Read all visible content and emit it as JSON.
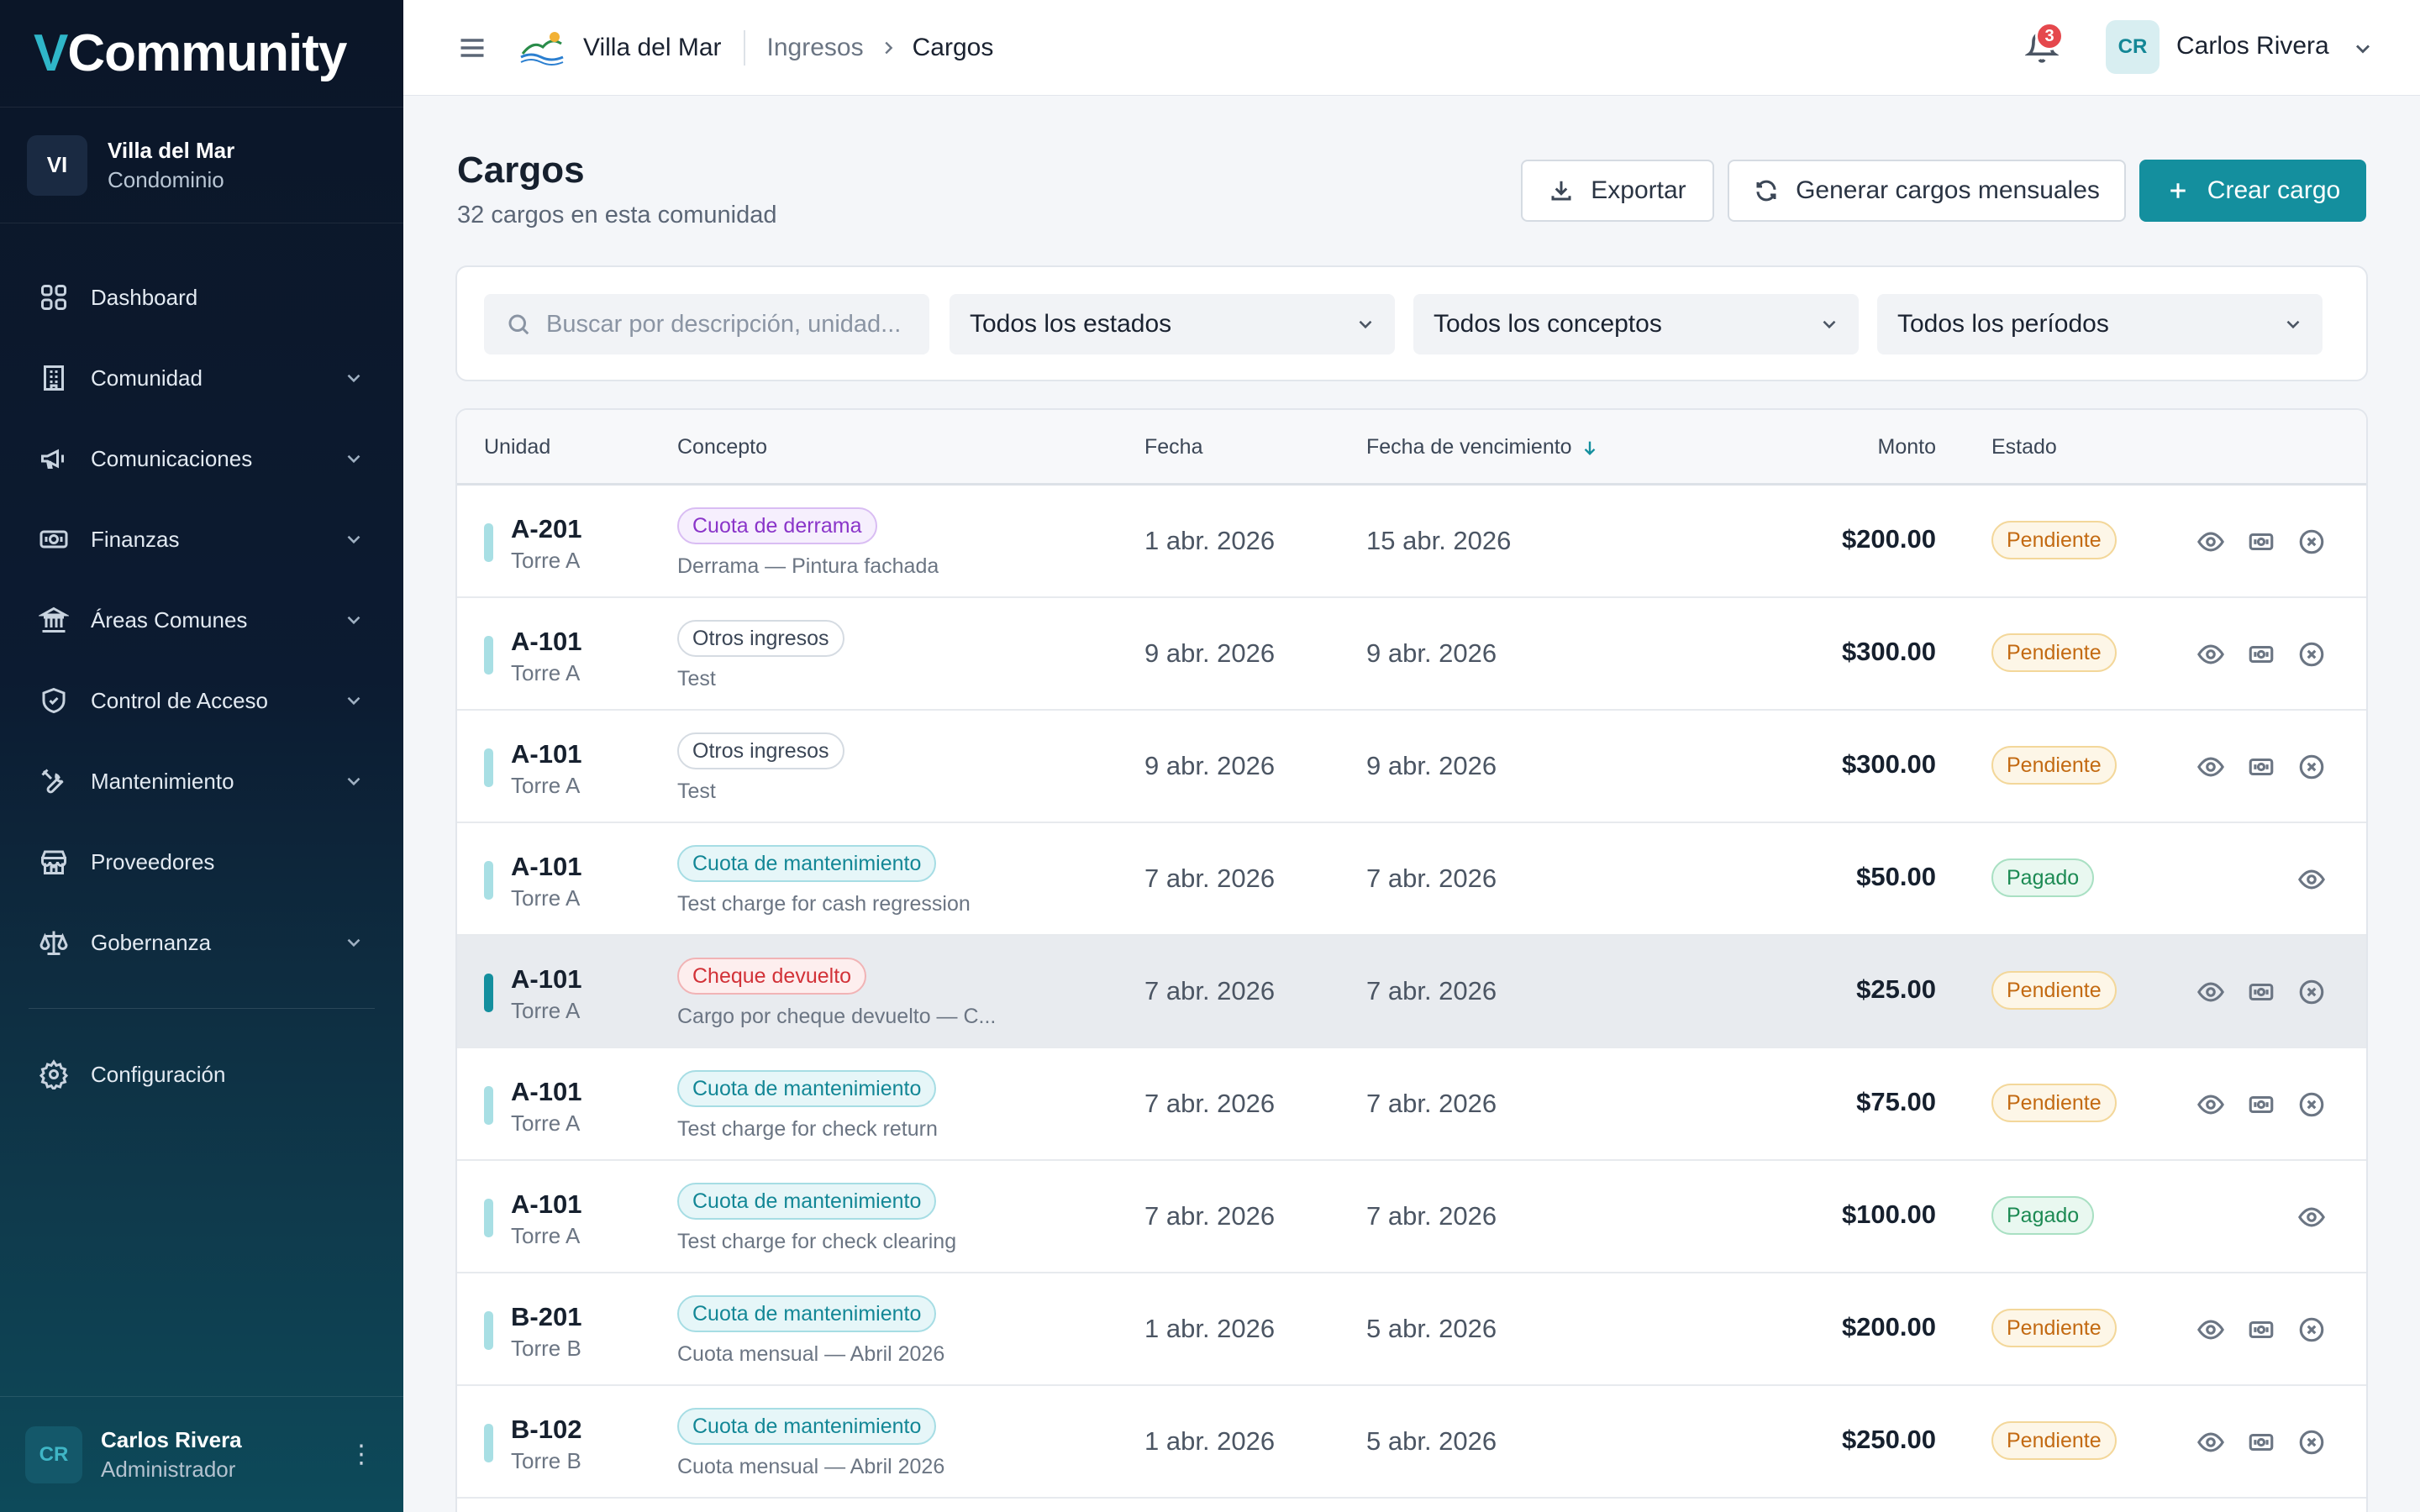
{
  "sidebar": {
    "logo_v": "V",
    "logo_rest": "Community",
    "community": {
      "initials": "VI",
      "name": "Villa del Mar",
      "type": "Condominio"
    },
    "items": [
      {
        "label": "Dashboard",
        "icon": "grid-icon",
        "expandable": false
      },
      {
        "label": "Comunidad",
        "icon": "building-icon",
        "expandable": true
      },
      {
        "label": "Comunicaciones",
        "icon": "megaphone-icon",
        "expandable": true
      },
      {
        "label": "Finanzas",
        "icon": "banknote-icon",
        "expandable": true
      },
      {
        "label": "Áreas Comunes",
        "icon": "landmark-icon",
        "expandable": true
      },
      {
        "label": "Control de Acceso",
        "icon": "shield-check-icon",
        "expandable": true
      },
      {
        "label": "Mantenimiento",
        "icon": "wrench-icon",
        "expandable": true
      },
      {
        "label": "Proveedores",
        "icon": "store-icon",
        "expandable": false
      },
      {
        "label": "Gobernanza",
        "icon": "scale-icon",
        "expandable": true
      }
    ],
    "settings_label": "Configuración",
    "user": {
      "initials": "CR",
      "name": "Carlos Rivera",
      "role": "Administrador",
      "menu": "⋮"
    }
  },
  "topbar": {
    "community": "Villa del Mar",
    "breadcrumb_parent": "Ingresos",
    "breadcrumb_current": "Cargos",
    "notifications": "3",
    "user_initials": "CR",
    "user_name": "Carlos Rivera"
  },
  "page": {
    "title": "Cargos",
    "subtitle": "32 cargos en esta comunidad",
    "export_label": "Exportar",
    "generate_label": "Generar cargos mensuales",
    "create_label": "Crear cargo"
  },
  "filters": {
    "search_placeholder": "Buscar por descripción, unidad...",
    "status": "Todos los estados",
    "concept": "Todos los conceptos",
    "period": "Todos los períodos"
  },
  "table": {
    "headers": {
      "unit": "Unidad",
      "concept": "Concepto",
      "date": "Fecha",
      "due": "Fecha de vencimiento",
      "amount": "Monto",
      "status": "Estado"
    },
    "rows": [
      {
        "unit": "A-201",
        "tower": "Torre A",
        "concept": "Cuota de derrama",
        "concept_color": "purple",
        "desc": "Derrama — Pintura fachada",
        "date": "1 abr. 2026",
        "due": "15 abr. 2026",
        "amount": "$200.00",
        "status": "Pendiente",
        "paid": false
      },
      {
        "unit": "A-101",
        "tower": "Torre A",
        "concept": "Otros ingresos",
        "concept_color": "gray",
        "desc": "Test",
        "date": "9 abr. 2026",
        "due": "9 abr. 2026",
        "amount": "$300.00",
        "status": "Pendiente",
        "paid": false
      },
      {
        "unit": "A-101",
        "tower": "Torre A",
        "concept": "Otros ingresos",
        "concept_color": "gray",
        "desc": "Test",
        "date": "9 abr. 2026",
        "due": "9 abr. 2026",
        "amount": "$300.00",
        "status": "Pendiente",
        "paid": false
      },
      {
        "unit": "A-101",
        "tower": "Torre A",
        "concept": "Cuota de mantenimiento",
        "concept_color": "teal",
        "desc": "Test charge for cash regression",
        "date": "7 abr. 2026",
        "due": "7 abr. 2026",
        "amount": "$50.00",
        "status": "Pagado",
        "paid": true
      },
      {
        "unit": "A-101",
        "tower": "Torre A",
        "concept": "Cheque devuelto",
        "concept_color": "red",
        "desc": "Cargo por cheque devuelto — C...",
        "date": "7 abr. 2026",
        "due": "7 abr. 2026",
        "amount": "$25.00",
        "status": "Pendiente",
        "paid": false,
        "highlight": true
      },
      {
        "unit": "A-101",
        "tower": "Torre A",
        "concept": "Cuota de mantenimiento",
        "concept_color": "teal",
        "desc": "Test charge for check return",
        "date": "7 abr. 2026",
        "due": "7 abr. 2026",
        "amount": "$75.00",
        "status": "Pendiente",
        "paid": false
      },
      {
        "unit": "A-101",
        "tower": "Torre A",
        "concept": "Cuota de mantenimiento",
        "concept_color": "teal",
        "desc": "Test charge for check clearing",
        "date": "7 abr. 2026",
        "due": "7 abr. 2026",
        "amount": "$100.00",
        "status": "Pagado",
        "paid": true
      },
      {
        "unit": "B-201",
        "tower": "Torre B",
        "concept": "Cuota de mantenimiento",
        "concept_color": "teal",
        "desc": "Cuota mensual — Abril 2026",
        "date": "1 abr. 2026",
        "due": "5 abr. 2026",
        "amount": "$200.00",
        "status": "Pendiente",
        "paid": false
      },
      {
        "unit": "B-102",
        "tower": "Torre B",
        "concept": "Cuota de mantenimiento",
        "concept_color": "teal",
        "desc": "Cuota mensual — Abril 2026",
        "date": "1 abr. 2026",
        "due": "5 abr. 2026",
        "amount": "$250.00",
        "status": "Pendiente",
        "paid": false
      }
    ]
  },
  "colors": {
    "accent": "#148f9e",
    "sidebar_dark": "#0b1628",
    "pending": "#c36a12",
    "paid": "#1c8a53"
  }
}
